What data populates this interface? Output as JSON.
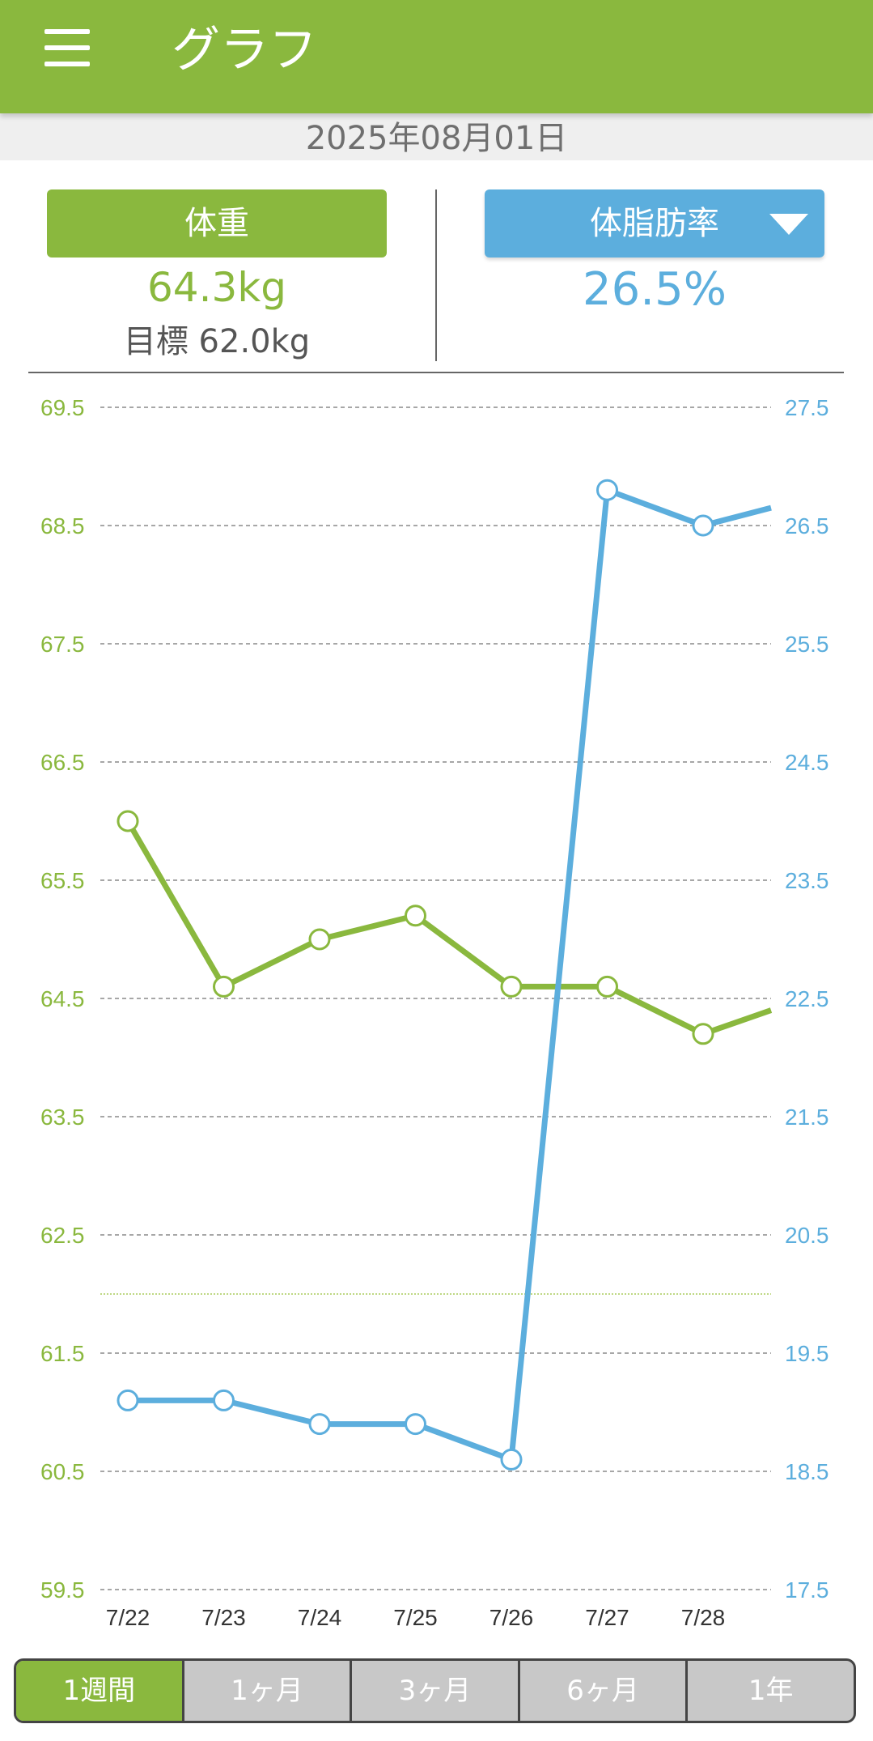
{
  "app_bar": {
    "title": "グラフ",
    "menu_icon": "hamburger-menu-icon"
  },
  "date": "2025年08月01日",
  "weight": {
    "button_label": "体重",
    "value": "64.3kg",
    "goal": "目標 62.0kg",
    "color": "#8ab83e"
  },
  "body_fat": {
    "button_label": "体脂肪率",
    "value": "26.5%",
    "color": "#5caedd",
    "dropdown_icon": "triangle-down-icon"
  },
  "chart_data": {
    "type": "line",
    "categories": [
      "7/22",
      "7/23",
      "7/24",
      "7/25",
      "7/26",
      "7/27",
      "7/28"
    ],
    "left_axis": {
      "ticks": [
        "69.5",
        "68.5",
        "67.5",
        "66.5",
        "65.5",
        "64.5",
        "63.5",
        "62.5",
        "61.5",
        "60.5",
        "59.5"
      ],
      "range": [
        59.5,
        69.5
      ],
      "color": "#8ab83e"
    },
    "right_axis": {
      "ticks": [
        "27.5",
        "26.5",
        "25.5",
        "24.5",
        "23.5",
        "22.5",
        "21.5",
        "20.5",
        "19.5",
        "18.5",
        "17.5"
      ],
      "range": [
        17.5,
        27.5
      ],
      "color": "#5caedd"
    },
    "grid": true,
    "goal_line": 62.0,
    "series": [
      {
        "axis": "left",
        "color": "#8ab83e",
        "values": [
          66.0,
          64.6,
          65.0,
          65.2,
          64.6,
          64.6,
          64.2
        ],
        "trailing_value": 64.4
      },
      {
        "axis": "right",
        "color": "#5caedd",
        "values": [
          19.1,
          19.1,
          18.9,
          18.9,
          18.6,
          26.8,
          26.5
        ],
        "trailing_value": 26.65
      }
    ]
  },
  "period_tabs": [
    {
      "label": "1週間",
      "active": true
    },
    {
      "label": "1ヶ月",
      "active": false
    },
    {
      "label": "3ヶ月",
      "active": false
    },
    {
      "label": "6ヶ月",
      "active": false
    },
    {
      "label": "1年",
      "active": false
    }
  ]
}
